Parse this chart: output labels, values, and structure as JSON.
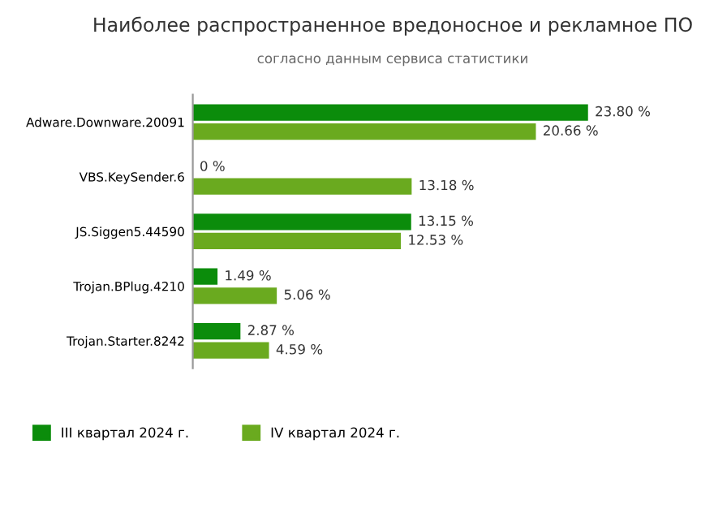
{
  "chart_data": {
    "type": "bar",
    "orientation": "horizontal",
    "title": "Наиболее распространенное вредоносное и рекламное ПО",
    "subtitle": "согласно данным сервиса статистики",
    "categories": [
      "Adware.Downware.20091",
      "VBS.KeySender.6",
      "JS.Siggen5.44590",
      "Trojan.BPlug.4210",
      "Trojan.Starter.8242"
    ],
    "series": [
      {
        "name": "III квартал 2024 г.",
        "color": "#0b8c0b",
        "values": [
          23.8,
          0,
          13.15,
          1.49,
          2.87
        ],
        "value_labels": [
          "23.80 %",
          "0 %",
          "13.15 %",
          "1.49 %",
          "2.87 %"
        ]
      },
      {
        "name": "IV квартал 2024 г.",
        "color": "#6aaa1f",
        "values": [
          20.66,
          13.18,
          12.53,
          5.06,
          4.59
        ],
        "value_labels": [
          "20.66 %",
          "13.18 %",
          "12.53 %",
          "5.06 %",
          "4.59 %"
        ]
      }
    ],
    "legend": "bottom left"
  }
}
